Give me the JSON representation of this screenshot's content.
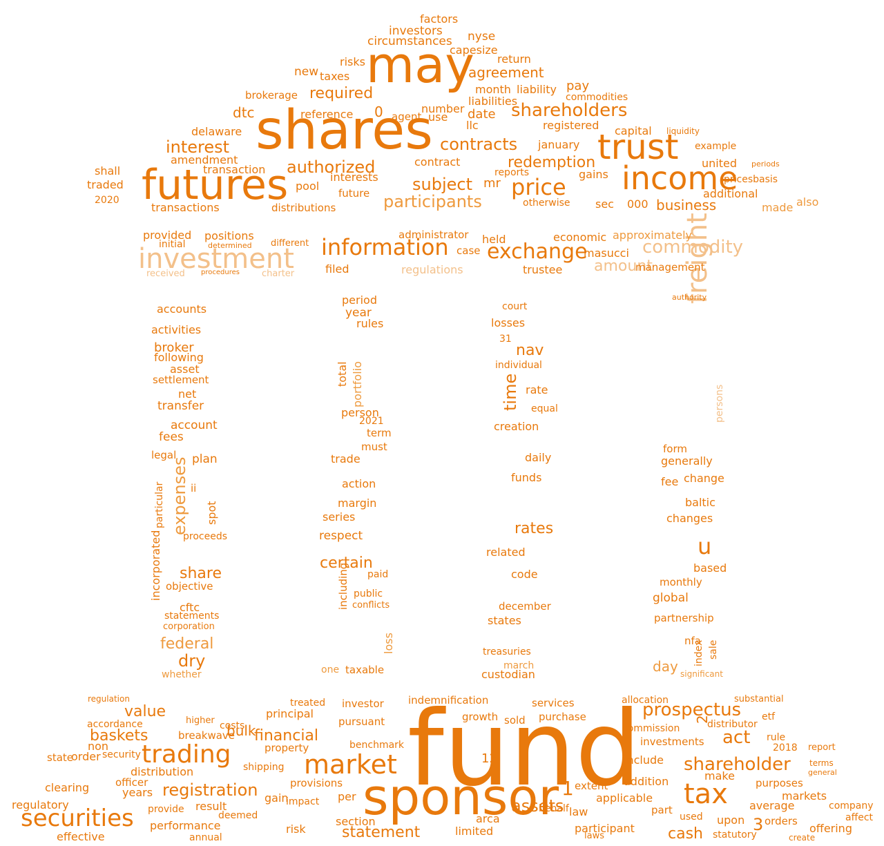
{
  "palette": {
    "dark": "#e8790c",
    "medium": "#ee9a3e",
    "light": "#f3c08a",
    "faint": "#f9dcb9"
  },
  "words": [
    "fund",
    "sponsor",
    "shares",
    "futures",
    "may",
    "trust",
    "income",
    "tax",
    "investment",
    "market",
    "securities",
    "trading",
    "freight",
    "information",
    "exchange",
    "price",
    "commodity",
    "prospectus",
    "shareholder",
    "shareholders",
    "contracts",
    "authorized",
    "interest",
    "participants",
    "registration",
    "assets",
    "amount",
    "value",
    "baskets",
    "financial",
    "business",
    "required",
    "certain",
    "expenses",
    "agreement",
    "redemption",
    "subject",
    "act",
    "statement",
    "nav",
    "rates",
    "time",
    "share",
    "federal",
    "cash",
    "dry",
    "day",
    "u",
    "1",
    "3",
    "12",
    "0",
    "2",
    "investors",
    "circumstances",
    "factors",
    "nyse",
    "capesize",
    "return",
    "risks",
    "taxes",
    "new",
    "brokerage",
    "dtc",
    "reference",
    "agent",
    "number",
    "use",
    "month",
    "liability",
    "liabilities",
    "pay",
    "commodities",
    "date",
    "llc",
    "registered",
    "capital",
    "liquidity",
    "delaware",
    "amendment",
    "transaction",
    "shall",
    "traded",
    "2020",
    "transactions",
    "pool",
    "interests",
    "future",
    "distributions",
    "contract",
    "mr",
    "reports",
    "january",
    "united",
    "example",
    "additional",
    "pricesbasis",
    "periods",
    "gains",
    "otherwise",
    "sec",
    "000",
    "made",
    "also",
    "provided",
    "positions",
    "initial",
    "determined",
    "different",
    "administrator",
    "held",
    "economic",
    "approximately",
    "masucci",
    "management",
    "trustee",
    "filed",
    "regulations",
    "received",
    "procedures",
    "charter",
    "case",
    "period",
    "year",
    "rules",
    "accounts",
    "activities",
    "broker",
    "following",
    "asset",
    "settlement",
    "net",
    "transfer",
    "account",
    "fees",
    "legal",
    "plan",
    "ii",
    "incorporated",
    "particular",
    "spot",
    "proceeds",
    "objective",
    "cftc",
    "statements",
    "corporation",
    "whether",
    "court",
    "losses",
    "31",
    "individual",
    "rate",
    "equal",
    "creation",
    "daily",
    "funds",
    "related",
    "code",
    "december",
    "states",
    "treasuries",
    "march",
    "custodian",
    "authority",
    "persons",
    "form",
    "generally",
    "fee",
    "change",
    "baltic",
    "changes",
    "based",
    "monthly",
    "global",
    "partnership",
    "nfa",
    "index",
    "sale",
    "significant",
    "total",
    "portfolio",
    "person",
    "2021",
    "term",
    "must",
    "trade",
    "action",
    "margin",
    "series",
    "respect",
    "including",
    "paid",
    "public",
    "conflicts",
    "loss",
    "taxable",
    "one",
    "regulation",
    "accordance",
    "order",
    "clearing",
    "regulatory",
    "performance",
    "effective",
    "annual",
    "bulk",
    "breakwave",
    "costs",
    "property",
    "principal",
    "investor",
    "indemnification",
    "services",
    "purchase",
    "pursuant",
    "benchmark",
    "growth",
    "sold",
    "allocation",
    "commission",
    "investments",
    "distributor",
    "etf",
    "include",
    "addition",
    "applicable",
    "extent",
    "behalf",
    "participant",
    "part",
    "section",
    "limited",
    "arca",
    "gain",
    "risk",
    "provisions",
    "impact",
    "upon",
    "orders",
    "offering",
    "company",
    "markets",
    "average",
    "purposes",
    "statutory",
    "affect",
    "create",
    "substantial",
    "treated",
    "law",
    "laws",
    "used",
    "make",
    "rule",
    "2018",
    "report",
    "terms",
    "general",
    "shipping",
    "distribution",
    "officer",
    "result",
    "provide",
    "years",
    "security",
    "state",
    "non",
    "higher",
    "deemed",
    "per"
  ]
}
